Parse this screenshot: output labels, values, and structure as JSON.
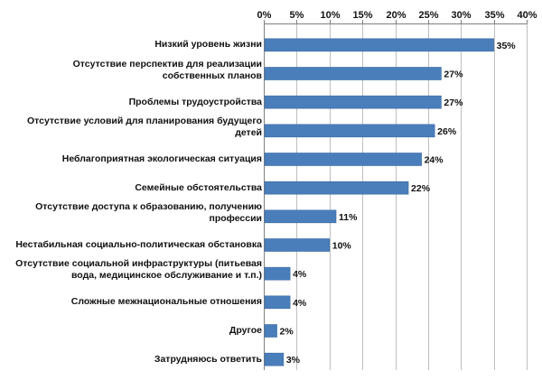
{
  "chart_data": {
    "type": "bar",
    "orientation": "horizontal",
    "categories": [
      [
        "Низкий уровень жизни"
      ],
      [
        "Отсутствие перспектив для реализации",
        "собственных планов"
      ],
      [
        "Проблемы трудоустройства"
      ],
      [
        "Отсутствие условий для планирования  будущего",
        "детей"
      ],
      [
        "Неблагоприятная экологическая ситуация"
      ],
      [
        "Семейные обстоятельства"
      ],
      [
        "Отсутствие доступа к образованию,  получению",
        "профессии"
      ],
      [
        "Нестабильная социально-политическая  обстановка"
      ],
      [
        "Отсутствие  социальной инфраструктуры (питьевая",
        "вода, медицинское обслуживание  и т.п.)"
      ],
      [
        "Сложные межнациональные  отношения"
      ],
      [
        "Другое"
      ],
      [
        "Затрудняюсь  ответить"
      ]
    ],
    "values": [
      35,
      27,
      27,
      26,
      24,
      22,
      11,
      10,
      4,
      4,
      2,
      3
    ],
    "value_labels": [
      "35%",
      "27%",
      "27%",
      "26%",
      "24%",
      "22%",
      "11%",
      "10%",
      "4%",
      "4%",
      "2%",
      "3%"
    ],
    "xlim": [
      0,
      40
    ],
    "x_ticks": [
      0,
      5,
      10,
      15,
      20,
      25,
      30,
      35,
      40
    ],
    "x_tick_labels": [
      "0%",
      "5%",
      "10%",
      "15%",
      "20%",
      "25%",
      "30%",
      "35%",
      "40%"
    ],
    "axis_position": "top",
    "grid": true,
    "bar_color": "#4a7ebb",
    "bar_edge_color": "#3a6aa0",
    "grid_color": "#bfbfbf",
    "axis_color": "#808080",
    "title": "",
    "xlabel": "",
    "ylabel": ""
  }
}
